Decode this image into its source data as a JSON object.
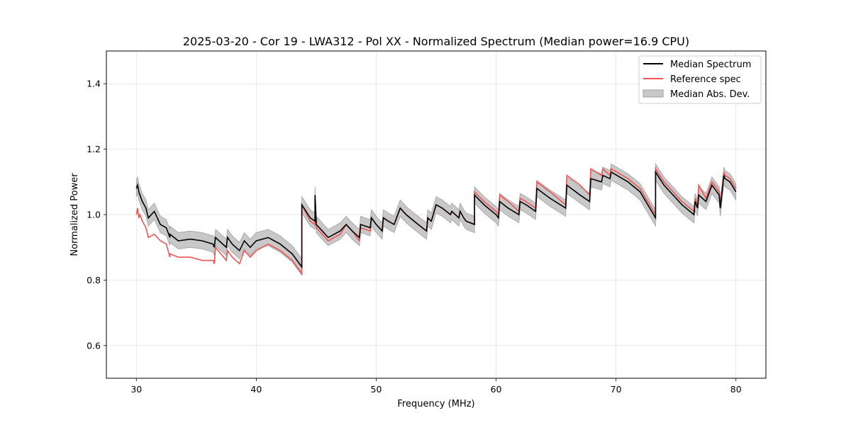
{
  "chart_data": {
    "type": "line",
    "title": "2025-03-20 - Cor 19 - LWA312 - Pol XX - Normalized Spectrum (Median power=16.9 CPU)",
    "xlabel": "Frequency (MHz)",
    "ylabel": "Normalized Power",
    "xlim": [
      27.5,
      82.5
    ],
    "ylim": [
      0.5,
      1.5
    ],
    "xticks": [
      30,
      40,
      50,
      60,
      70,
      80
    ],
    "yticks": [
      0.6,
      0.8,
      1.0,
      1.2,
      1.4
    ],
    "xtick_labels": [
      "30",
      "40",
      "50",
      "60",
      "70",
      "80"
    ],
    "ytick_labels": [
      "0.6",
      "0.8",
      "1.0",
      "1.2",
      "1.4"
    ],
    "grid": true,
    "legend_position": "top-right",
    "legend": [
      "Median Spectrum",
      "Reference spec",
      "Median Abs. Dev."
    ],
    "colors": {
      "median": "#000000",
      "reference": "#ee5555",
      "mad": "#c8c8c8",
      "mad_edge": "#a0a0a0"
    },
    "series": [
      {
        "name": "Median Spectrum",
        "x": [
          30.0,
          30.1,
          30.2,
          30.3,
          30.5,
          30.8,
          31.0,
          31.5,
          32.0,
          32.5,
          32.8,
          32.8,
          33.5,
          34.5,
          35.5,
          36.4,
          36.5,
          36.6,
          37.5,
          37.6,
          38.0,
          38.6,
          39.0,
          39.5,
          40.0,
          41.0,
          41.5,
          42.0,
          43.0,
          43.8,
          43.8,
          44.5,
          44.9,
          44.9,
          45.0,
          45.0,
          45.5,
          46.0,
          46.5,
          47.0,
          47.5,
          48.0,
          48.6,
          48.7,
          49.5,
          49.6,
          50.0,
          50.5,
          50.6,
          51.0,
          51.5,
          52.0,
          52.5,
          53.5,
          54.2,
          54.3,
          54.6,
          55.0,
          55.5,
          56.2,
          56.3,
          56.9,
          57.0,
          57.3,
          57.5,
          58.2,
          58.2,
          59.0,
          60.0,
          60.2,
          60.3,
          61.0,
          61.9,
          62.0,
          62.5,
          63.3,
          63.4,
          64.5,
          65.8,
          65.9,
          67.0,
          67.8,
          67.9,
          68.8,
          68.9,
          69.5,
          69.6,
          71.0,
          72.0,
          73.3,
          73.3,
          74.0,
          75.5,
          76.5,
          76.6,
          76.8,
          76.9,
          77.5,
          78.0,
          78.6,
          78.7,
          79.0,
          79.1,
          79.5,
          80.0
        ],
        "y": [
          1.08,
          1.09,
          1.07,
          1.06,
          1.04,
          1.02,
          0.99,
          1.01,
          0.97,
          0.96,
          0.93,
          0.94,
          0.92,
          0.925,
          0.92,
          0.91,
          0.9,
          0.93,
          0.9,
          0.93,
          0.91,
          0.89,
          0.92,
          0.9,
          0.92,
          0.93,
          0.92,
          0.91,
          0.88,
          0.84,
          1.03,
          0.99,
          0.98,
          1.06,
          0.98,
          0.97,
          0.95,
          0.93,
          0.94,
          0.95,
          0.97,
          0.95,
          0.93,
          0.97,
          0.96,
          0.99,
          0.97,
          0.95,
          0.99,
          0.98,
          0.97,
          1.02,
          1.0,
          0.97,
          0.95,
          0.99,
          0.98,
          1.03,
          1.02,
          1.0,
          1.01,
          0.99,
          1.01,
          0.99,
          0.98,
          0.97,
          1.06,
          1.03,
          1.0,
          0.99,
          1.04,
          1.02,
          1.0,
          1.04,
          1.03,
          1.01,
          1.08,
          1.05,
          1.02,
          1.09,
          1.06,
          1.04,
          1.11,
          1.1,
          1.12,
          1.11,
          1.13,
          1.1,
          1.07,
          0.99,
          1.13,
          1.09,
          1.03,
          1.0,
          1.04,
          1.02,
          1.06,
          1.04,
          1.09,
          1.06,
          1.02,
          1.12,
          1.11,
          1.1,
          1.07
        ]
      },
      {
        "name": "Reference spec",
        "x": [
          30.0,
          30.1,
          30.2,
          30.3,
          30.5,
          30.8,
          31.0,
          31.5,
          32.0,
          32.5,
          32.8,
          32.8,
          33.5,
          34.5,
          35.5,
          36.4,
          36.5,
          36.6,
          37.5,
          37.6,
          38.0,
          38.6,
          39.0,
          39.5,
          40.0,
          41.0,
          41.5,
          42.0,
          43.0,
          43.8,
          43.8,
          44.5,
          44.9,
          44.9,
          45.0,
          45.0,
          45.5,
          46.0,
          46.5,
          47.0,
          47.5,
          48.0,
          48.6,
          48.7,
          49.5,
          49.6,
          50.0,
          50.5,
          50.6,
          51.0,
          51.5,
          52.0,
          52.5,
          53.5,
          54.2,
          54.3,
          54.6,
          55.0,
          55.5,
          56.2,
          56.3,
          56.9,
          57.0,
          57.3,
          57.5,
          58.2,
          58.2,
          59.0,
          60.0,
          60.2,
          60.3,
          61.0,
          61.9,
          62.0,
          62.5,
          63.3,
          63.4,
          64.5,
          65.8,
          65.9,
          67.0,
          67.8,
          67.9,
          68.8,
          68.9,
          69.5,
          69.6,
          71.0,
          72.0,
          73.3,
          73.3,
          74.0,
          75.5,
          76.5,
          76.6,
          76.8,
          76.9,
          77.5,
          78.0,
          78.6,
          78.7,
          79.0,
          79.1,
          79.5,
          80.0
        ],
        "y": [
          1.0,
          1.02,
          0.99,
          1.0,
          0.98,
          0.96,
          0.93,
          0.94,
          0.92,
          0.91,
          0.87,
          0.88,
          0.87,
          0.87,
          0.86,
          0.86,
          0.85,
          0.9,
          0.86,
          0.89,
          0.87,
          0.85,
          0.89,
          0.87,
          0.89,
          0.91,
          0.9,
          0.89,
          0.86,
          0.82,
          1.03,
          0.98,
          0.97,
          1.06,
          0.97,
          0.96,
          0.94,
          0.92,
          0.93,
          0.94,
          0.97,
          0.95,
          0.92,
          0.96,
          0.95,
          0.99,
          0.97,
          0.95,
          0.99,
          0.98,
          0.97,
          1.02,
          1.0,
          0.97,
          0.95,
          0.99,
          0.98,
          1.03,
          1.02,
          1.0,
          1.01,
          0.99,
          1.01,
          0.99,
          0.98,
          0.97,
          1.07,
          1.04,
          1.01,
          1.0,
          1.06,
          1.04,
          1.01,
          1.05,
          1.04,
          1.02,
          1.1,
          1.07,
          1.03,
          1.12,
          1.09,
          1.06,
          1.14,
          1.12,
          1.14,
          1.12,
          1.14,
          1.11,
          1.08,
          1.0,
          1.14,
          1.1,
          1.04,
          1.01,
          1.05,
          1.03,
          1.09,
          1.05,
          1.1,
          1.07,
          1.03,
          1.13,
          1.12,
          1.11,
          1.08
        ]
      }
    ],
    "mad_band_halfwidth": 0.025
  }
}
